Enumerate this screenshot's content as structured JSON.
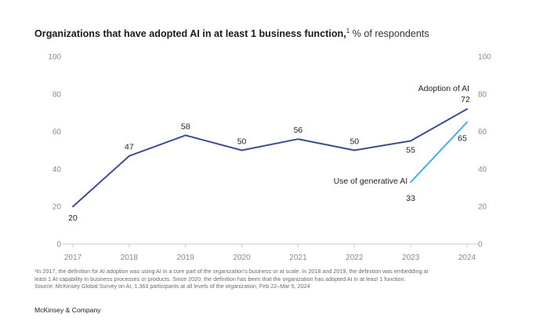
{
  "header": {
    "title_bold": "Organizations that have adopted AI in at least 1 business function,",
    "title_sup": "1",
    "title_rest": " % of respondents"
  },
  "chart_data": {
    "type": "line",
    "categories": [
      "2017",
      "2018",
      "2019",
      "2020",
      "2021",
      "2022",
      "2023",
      "2024"
    ],
    "ylim": [
      0,
      100
    ],
    "yticks": [
      "0",
      "20",
      "40",
      "60",
      "80",
      "100"
    ],
    "grid": false,
    "series": [
      {
        "name": "Adoption of AI",
        "color": "#3b4e8f",
        "x": [
          "2017",
          "2018",
          "2019",
          "2020",
          "2021",
          "2022",
          "2023",
          "2024"
        ],
        "values": [
          20,
          47,
          58,
          50,
          56,
          50,
          55,
          72
        ],
        "labels": [
          "20",
          "47",
          "58",
          "50",
          "56",
          "50",
          "55",
          "72"
        ]
      },
      {
        "name": "Use of generative AI",
        "color": "#3bb4e8",
        "x": [
          "2023",
          "2024"
        ],
        "values": [
          33,
          65
        ],
        "labels": [
          "33",
          "65"
        ]
      }
    ]
  },
  "footnotes": {
    "line1": "¹In 2017, the definition for AI adoption was using AI in a core part of the organization's business or at scale. In 2018 and 2019, the definition was embedding at",
    "line2": "least 1 AI capability in business processes or products. Since 2020, the definition has been that the organization has adopted AI in at least 1 function.",
    "line3": "Source: McKinsey Global Survey on AI, 1,363 participants at all levels of the organization, Feb 22–Mar 5, 2024"
  },
  "brand": "McKinsey & Company"
}
